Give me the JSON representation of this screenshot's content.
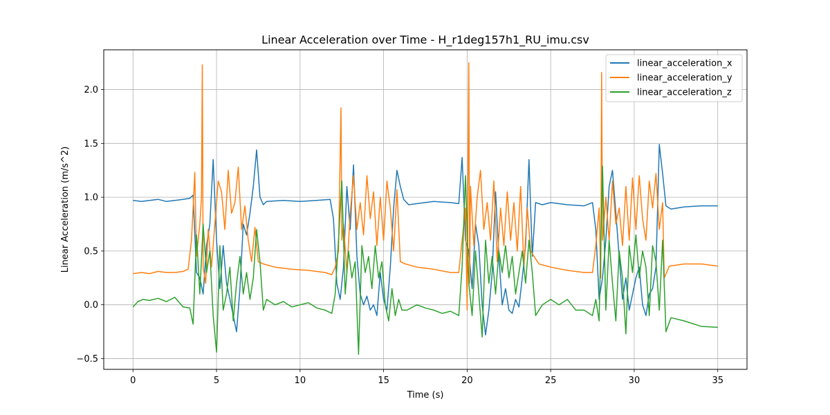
{
  "chart_data": {
    "type": "line",
    "title": "Linear Acceleration over Time - H_r1deg157h1_RU_imu.csv",
    "xlabel": "Time (s)",
    "ylabel": "Linear Acceleration (m/s^2)",
    "xlim": [
      -1.75,
      36.75
    ],
    "ylim": [
      -0.6,
      2.37
    ],
    "xticks": [
      0,
      5,
      10,
      15,
      20,
      25,
      30,
      35
    ],
    "xtick_labels": [
      "0",
      "5",
      "10",
      "15",
      "20",
      "25",
      "30",
      "35"
    ],
    "yticks": [
      -0.5,
      0.0,
      0.5,
      1.0,
      1.5,
      2.0
    ],
    "ytick_labels": [
      "−0.5",
      "0.0",
      "0.5",
      "1.0",
      "1.5",
      "2.0"
    ],
    "grid": true,
    "legend_position": "upper right",
    "series": [
      {
        "name": "linear_acceleration_x",
        "color": "#1f77b4",
        "x": [
          0,
          0.5,
          1,
          1.5,
          2,
          2.5,
          3,
          3.4,
          3.6,
          3.8,
          4.0,
          4.2,
          4.4,
          4.6,
          4.8,
          5.0,
          5.2,
          5.4,
          5.6,
          5.8,
          6.0,
          6.2,
          6.4,
          6.6,
          6.8,
          7.0,
          7.2,
          7.4,
          7.6,
          7.8,
          8.0,
          9.0,
          10.0,
          11.0,
          11.8,
          12.0,
          12.2,
          12.4,
          12.6,
          12.8,
          13.0,
          13.2,
          13.4,
          13.6,
          13.8,
          14.0,
          14.2,
          14.4,
          14.6,
          14.8,
          15.0,
          15.2,
          15.4,
          15.6,
          15.8,
          16.0,
          16.2,
          16.5,
          17.0,
          18.0,
          19.0,
          19.5,
          19.7,
          19.9,
          20.1,
          20.3,
          20.5,
          20.7,
          20.9,
          21.1,
          21.3,
          21.5,
          21.7,
          21.9,
          22.1,
          22.3,
          22.5,
          22.7,
          22.9,
          23.1,
          23.3,
          23.5,
          23.7,
          23.9,
          24.1,
          24.5,
          25.0,
          26.0,
          27.0,
          27.5,
          27.7,
          27.9,
          28.1,
          28.3,
          28.5,
          28.7,
          28.9,
          29.1,
          29.3,
          29.5,
          29.7,
          29.9,
          30.1,
          30.3,
          30.5,
          30.7,
          30.9,
          31.1,
          31.3,
          31.5,
          31.7,
          31.9,
          32.2,
          33,
          34,
          35
        ],
        "y": [
          0.97,
          0.96,
          0.97,
          0.98,
          0.96,
          0.97,
          0.98,
          0.99,
          1.02,
          0.3,
          0.25,
          0.1,
          0.55,
          0.75,
          1.35,
          0.6,
          0.15,
          0.55,
          0.2,
          0.05,
          -0.1,
          -0.25,
          0.15,
          0.75,
          0.65,
          0.85,
          1.1,
          1.44,
          1.0,
          0.93,
          0.96,
          0.97,
          0.96,
          0.97,
          0.98,
          0.8,
          0.2,
          0.05,
          0.35,
          1.1,
          0.7,
          1.3,
          0.45,
          0.1,
          0.0,
          0.08,
          -0.05,
          0.0,
          -0.1,
          0.3,
          0.05,
          -0.05,
          0.35,
          0.9,
          1.25,
          1.1,
          0.98,
          0.93,
          0.94,
          0.96,
          0.95,
          0.94,
          1.37,
          0.6,
          0.5,
          0.15,
          0.75,
          0.55,
          0.0,
          -0.28,
          -0.05,
          0.3,
          1.05,
          0.45,
          0.0,
          0.15,
          -0.05,
          -0.08,
          0.05,
          -0.02,
          0.25,
          0.55,
          1.35,
          0.45,
          0.95,
          0.93,
          0.95,
          0.93,
          0.92,
          0.95,
          0.7,
          0.05,
          0.25,
          0.6,
          1.1,
          1.25,
          0.85,
          0.45,
          0.05,
          0.25,
          -0.05,
          0.1,
          0.25,
          0.35,
          0.0,
          -0.1,
          0.1,
          0.15,
          0.35,
          1.49,
          1.22,
          0.92,
          0.89,
          0.91,
          0.92,
          0.92
        ]
      },
      {
        "name": "linear_acceleration_y",
        "color": "#ff7f0e",
        "x": [
          0,
          0.5,
          1,
          1.5,
          2,
          2.5,
          3,
          3.3,
          3.5,
          3.6,
          3.7,
          3.8,
          4.0,
          4.1,
          4.15,
          4.2,
          4.35,
          4.5,
          4.7,
          4.9,
          5.1,
          5.3,
          5.5,
          5.7,
          5.9,
          6.1,
          6.3,
          6.5,
          6.7,
          6.9,
          7.1,
          7.3,
          7.5,
          7.8,
          8.5,
          9.5,
          10.5,
          11.5,
          11.9,
          12.1,
          12.3,
          12.45,
          12.5,
          12.6,
          12.8,
          13.0,
          13.2,
          13.4,
          13.6,
          13.8,
          14.0,
          14.2,
          14.4,
          14.6,
          14.8,
          15.0,
          15.2,
          15.4,
          15.6,
          15.8,
          16.0,
          16.3,
          17.0,
          18.0,
          19.0,
          19.5,
          19.7,
          19.9,
          20.0,
          20.1,
          20.15,
          20.2,
          20.4,
          20.6,
          20.8,
          21.0,
          21.2,
          21.4,
          21.6,
          21.8,
          22.0,
          22.2,
          22.4,
          22.6,
          22.8,
          23.0,
          23.2,
          23.4,
          23.6,
          23.8,
          24.0,
          24.3,
          25,
          26,
          27,
          27.5,
          27.7,
          27.9,
          28.0,
          28.05,
          28.1,
          28.3,
          28.5,
          28.7,
          28.9,
          29.1,
          29.3,
          29.5,
          29.7,
          29.9,
          30.1,
          30.3,
          30.5,
          30.7,
          30.9,
          31.1,
          31.3,
          31.5,
          31.7,
          31.8,
          32.1,
          33,
          34,
          35
        ],
        "y": [
          0.29,
          0.3,
          0.29,
          0.31,
          0.3,
          0.3,
          0.31,
          0.33,
          0.6,
          0.9,
          1.23,
          0.45,
          0.75,
          1.0,
          2.23,
          0.35,
          0.2,
          0.7,
          0.35,
          0.75,
          1.15,
          1.05,
          0.7,
          1.25,
          0.85,
          0.95,
          1.28,
          0.7,
          0.92,
          0.6,
          0.4,
          0.72,
          0.4,
          0.38,
          0.35,
          0.33,
          0.32,
          0.3,
          0.28,
          0.35,
          0.5,
          1.83,
          0.6,
          0.75,
          0.3,
          0.85,
          1.2,
          0.7,
          0.95,
          0.65,
          1.2,
          0.8,
          1.05,
          0.55,
          1.0,
          0.6,
          1.15,
          0.9,
          0.5,
          1.07,
          0.4,
          0.38,
          0.35,
          0.33,
          0.3,
          0.3,
          0.6,
          0.9,
          -0.05,
          2.25,
          0.2,
          1.1,
          0.55,
          1.0,
          1.25,
          0.7,
          0.95,
          0.6,
          1.15,
          0.4,
          0.9,
          0.55,
          1.05,
          0.6,
          0.95,
          0.5,
          1.1,
          0.35,
          0.9,
          0.5,
          0.45,
          0.38,
          0.35,
          0.32,
          0.3,
          0.3,
          0.55,
          0.9,
          0.25,
          2.16,
          0.6,
          1.0,
          0.6,
          1.15,
          0.75,
          0.9,
          0.55,
          1.1,
          0.6,
          1.18,
          0.7,
          1.2,
          0.8,
          0.6,
          1.15,
          0.9,
          1.22,
          0.7,
          0.95,
          0.25,
          0.36,
          0.38,
          0.38,
          0.36
        ]
      },
      {
        "name": "linear_acceleration_z",
        "color": "#2ca02c",
        "x": [
          0,
          0.3,
          0.6,
          1.0,
          1.5,
          2.0,
          2.5,
          3.0,
          3.4,
          3.6,
          3.8,
          4.0,
          4.2,
          4.4,
          4.6,
          4.8,
          5.0,
          5.2,
          5.4,
          5.6,
          5.8,
          6.0,
          6.2,
          6.4,
          6.6,
          6.8,
          7.0,
          7.2,
          7.4,
          7.6,
          7.8,
          8.0,
          8.5,
          9.0,
          9.5,
          10.0,
          10.5,
          11.0,
          11.5,
          11.9,
          12.1,
          12.3,
          12.5,
          12.7,
          12.9,
          13.1,
          13.3,
          13.5,
          13.7,
          13.9,
          14.1,
          14.3,
          14.5,
          14.7,
          14.9,
          15.1,
          15.3,
          15.5,
          15.7,
          15.9,
          16.1,
          16.4,
          17.0,
          17.5,
          18.0,
          18.5,
          19.0,
          19.5,
          19.7,
          19.9,
          20.1,
          20.3,
          20.5,
          20.7,
          20.9,
          21.1,
          21.3,
          21.5,
          21.7,
          21.9,
          22.1,
          22.3,
          22.5,
          22.7,
          22.9,
          23.1,
          23.3,
          23.5,
          23.7,
          23.9,
          24.1,
          24.5,
          25.0,
          25.5,
          26.0,
          26.5,
          27.0,
          27.5,
          27.7,
          27.9,
          28.1,
          28.3,
          28.5,
          28.7,
          28.9,
          29.1,
          29.3,
          29.5,
          29.7,
          29.9,
          30.1,
          30.3,
          30.5,
          30.7,
          30.9,
          31.1,
          31.3,
          31.5,
          31.7,
          31.9,
          32.2,
          33,
          34,
          35
        ],
        "y": [
          -0.02,
          0.03,
          0.05,
          0.04,
          0.06,
          0.03,
          0.07,
          -0.02,
          -0.03,
          -0.18,
          0.65,
          0.1,
          0.75,
          0.3,
          0.5,
          -0.1,
          -0.44,
          0.55,
          -0.05,
          0.1,
          0.35,
          -0.15,
          0.2,
          0.45,
          0.1,
          0.3,
          0.05,
          0.25,
          0.7,
          0.4,
          -0.05,
          0.05,
          0.0,
          0.03,
          -0.02,
          0.0,
          0.02,
          -0.03,
          -0.05,
          -0.08,
          0.1,
          0.6,
          1.15,
          0.1,
          0.5,
          0.25,
          0.4,
          -0.46,
          0.55,
          0.3,
          0.45,
          0.15,
          0.55,
          0.25,
          0.4,
          0.0,
          -0.15,
          0.15,
          -0.1,
          0.05,
          -0.05,
          -0.05,
          0.0,
          -0.03,
          -0.05,
          -0.08,
          -0.06,
          -0.1,
          0.35,
          1.2,
          0.2,
          -0.1,
          0.5,
          0.1,
          -0.3,
          0.6,
          0.2,
          0.45,
          0.1,
          0.5,
          0.3,
          0.55,
          0.25,
          0.45,
          0.1,
          0.3,
          0.5,
          0.2,
          0.6,
          0.3,
          -0.1,
          0.0,
          0.05,
          0.0,
          0.05,
          -0.05,
          -0.05,
          -0.1,
          0.05,
          -0.15,
          1.29,
          -0.05,
          0.6,
          0.2,
          -0.15,
          0.5,
          0.25,
          -0.27,
          0.55,
          0.3,
          0.65,
          0.25,
          0.5,
          0.35,
          -0.1,
          0.55,
          0.4,
          -0.05,
          0.6,
          -0.25,
          -0.12,
          -0.15,
          -0.2,
          -0.21
        ]
      }
    ]
  }
}
